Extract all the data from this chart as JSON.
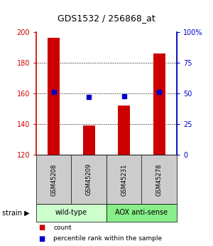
{
  "title": "GDS1532 / 256868_at",
  "samples": [
    "GSM45208",
    "GSM45209",
    "GSM45231",
    "GSM45278"
  ],
  "counts": [
    196,
    139,
    152,
    186
  ],
  "percentiles": [
    51,
    47,
    48,
    51
  ],
  "ylim_left": [
    120,
    200
  ],
  "ylim_right": [
    0,
    100
  ],
  "yticks_left": [
    120,
    140,
    160,
    180,
    200
  ],
  "yticks_right": [
    0,
    25,
    50,
    75,
    100
  ],
  "ytick_labels_right": [
    "0",
    "25",
    "50",
    "75",
    "100%"
  ],
  "bar_color": "#cc0000",
  "dot_color": "#0000cc",
  "bar_width": 0.35,
  "groups": [
    {
      "label": "wild-type",
      "samples": [
        0,
        1
      ],
      "color": "#ccffcc"
    },
    {
      "label": "AOX anti-sense",
      "samples": [
        2,
        3
      ],
      "color": "#88ee88"
    }
  ],
  "bg_color": "#ffffff",
  "plot_bg": "#ffffff",
  "sample_box_color": "#cccccc",
  "dotted_grid_levels": [
    140,
    160,
    180
  ],
  "legend_count_label": "count",
  "legend_pct_label": "percentile rank within the sample"
}
